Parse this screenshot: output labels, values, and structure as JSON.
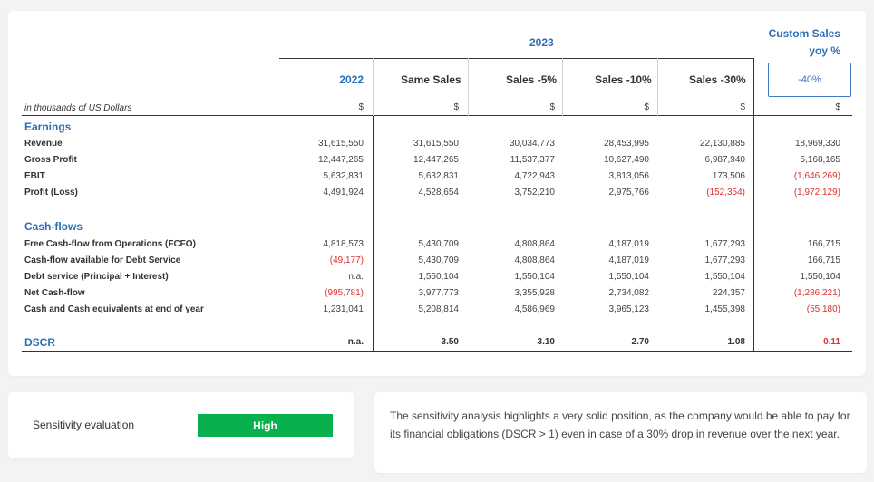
{
  "table": {
    "header_2023": "2023",
    "custom_header_line1": "Custom Sales",
    "custom_header_line2": "yoy %",
    "custom_value": "-40%",
    "columns": [
      "2022",
      "Same Sales",
      "Sales -5%",
      "Sales -10%",
      "Sales -30%"
    ],
    "currency_note": "in thousands of US Dollars",
    "currency_symbol": "$",
    "earnings_title": "Earnings",
    "earnings_rows": [
      {
        "label": "Revenue",
        "values": [
          "31,615,550",
          "31,615,550",
          "30,034,773",
          "28,453,995",
          "22,130,885",
          "18,969,330"
        ]
      },
      {
        "label": "Gross Profit",
        "values": [
          "12,447,265",
          "12,447,265",
          "11,537,377",
          "10,627,490",
          "6,987,940",
          "5,168,165"
        ]
      },
      {
        "label": "EBIT",
        "values": [
          "5,632,831",
          "5,632,831",
          "4,722,943",
          "3,813,056",
          "173,506",
          "(1,646,269)"
        ]
      },
      {
        "label": "Profit (Loss)",
        "values": [
          "4,491,924",
          "4,528,654",
          "3,752,210",
          "2,975,766",
          "(152,354)",
          "(1,972,129)"
        ]
      }
    ],
    "cashflows_title": "Cash-flows",
    "cashflow_rows": [
      {
        "label": "Free Cash-flow from Operations (FCFO)",
        "values": [
          "4,818,573",
          "5,430,709",
          "4,808,864",
          "4,187,019",
          "1,677,293",
          "166,715"
        ]
      },
      {
        "label": "Cash-flow available for Debt Service",
        "values": [
          "(49,177)",
          "5,430,709",
          "4,808,864",
          "4,187,019",
          "1,677,293",
          "166,715"
        ]
      },
      {
        "label": "Debt service (Principal + Interest)",
        "values": [
          "n.a.",
          "1,550,104",
          "1,550,104",
          "1,550,104",
          "1,550,104",
          "1,550,104"
        ]
      },
      {
        "label": "Net Cash-flow",
        "values": [
          "(995,781)",
          "3,977,773",
          "3,355,928",
          "2,734,082",
          "224,357",
          "(1,286,221)"
        ]
      },
      {
        "label": "Cash and Cash equivalents at end of year",
        "values": [
          "1,231,041",
          "5,208,814",
          "4,586,969",
          "3,965,123",
          "1,455,398",
          "(55,180)"
        ]
      }
    ],
    "dscr_label": "DSCR",
    "dscr_values": [
      "n.a.",
      "3.50",
      "3.10",
      "2.70",
      "1.08",
      "0.11"
    ]
  },
  "evaluation": {
    "label": "Sensitivity evaluation",
    "badge": "High",
    "badge_color": "#08b04e"
  },
  "note": "The sensitivity analysis highlights a very solid position, as the company would be able to pay for its financial obligations (DSCR > 1) even in case of a 30% drop in revenue over the next year.",
  "colors": {
    "accent": "#2a6fb7",
    "negative": "#e03030"
  }
}
